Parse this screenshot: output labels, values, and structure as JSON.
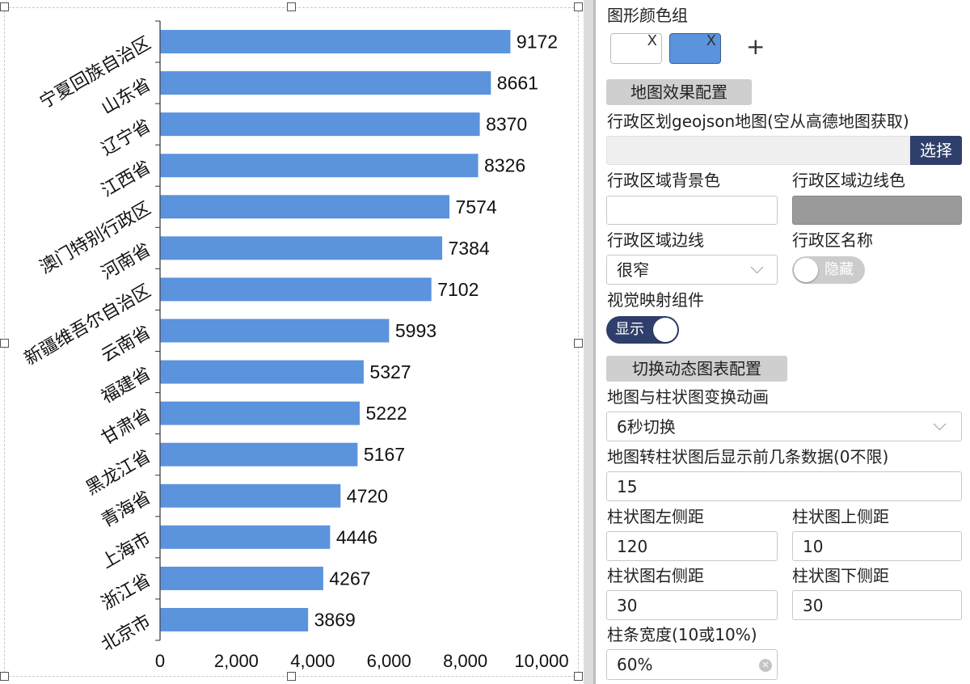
{
  "colors": {
    "bar": "#5b93dd",
    "toggle_on": "#2f3f6b",
    "toggle_off": "#cccccc",
    "choose_btn": "#2f3f6b",
    "swatch_blue": "#5b93dd",
    "border_color_swatch": "#9a9a9a"
  },
  "chart_data": {
    "type": "bar",
    "orientation": "horizontal",
    "categories": [
      "宁夏回族自治区",
      "山东省",
      "辽宁省",
      "江西省",
      "澳门特别行政区",
      "河南省",
      "新疆维吾尔自治区",
      "云南省",
      "福建省",
      "甘肃省",
      "黑龙江省",
      "青海省",
      "上海市",
      "浙江省",
      "北京市"
    ],
    "values": [
      9172,
      8661,
      8370,
      8326,
      7574,
      7384,
      7102,
      5993,
      5327,
      5222,
      5167,
      4720,
      4446,
      4267,
      3869
    ],
    "value_labels": [
      "9172",
      "8661",
      "8370",
      "8326",
      "7574",
      "7384",
      "7102",
      "5993",
      "5327",
      "5222",
      "5167",
      "4720",
      "4446",
      "4267",
      "3869"
    ],
    "x_ticks": [
      0,
      2000,
      4000,
      6000,
      8000,
      10000
    ],
    "x_tick_labels": [
      "0",
      "2,000",
      "4,000",
      "6,000",
      "8,000",
      "10,000"
    ],
    "xlim": [
      0,
      10000
    ],
    "grid": false,
    "legend": "none"
  },
  "panel": {
    "color_group_label": "图形颜色组",
    "swatch_x": "X",
    "add_icon": "+",
    "map_effect_section": "地图效果配置",
    "geojson_label": "行政区划geojson地图(空从高德地图获取)",
    "geojson_value": "",
    "choose_button": "选择",
    "region_bg_label": "行政区域背景色",
    "region_border_color_label": "行政区域边线色",
    "region_border_label": "行政区域边线",
    "region_border_value": "很窄",
    "region_name_label": "行政区名称",
    "region_name_toggle": "隐藏",
    "visual_map_label": "视觉映射组件",
    "visual_map_toggle": "显示",
    "dynamic_section": "切换动态图表配置",
    "anim_label": "地图与柱状图变换动画",
    "anim_value": "6秒切换",
    "topn_label": "地图转柱状图后显示前几条数据(0不限)",
    "topn_value": "15",
    "left_margin_label": "柱状图左侧距",
    "left_margin_value": "120",
    "top_margin_label": "柱状图上侧距",
    "top_margin_value": "10",
    "right_margin_label": "柱状图右侧距",
    "right_margin_value": "30",
    "bottom_margin_label": "柱状图下侧距",
    "bottom_margin_value": "30",
    "bar_width_label": "柱条宽度(10或10%)",
    "bar_width_value": "60%"
  }
}
